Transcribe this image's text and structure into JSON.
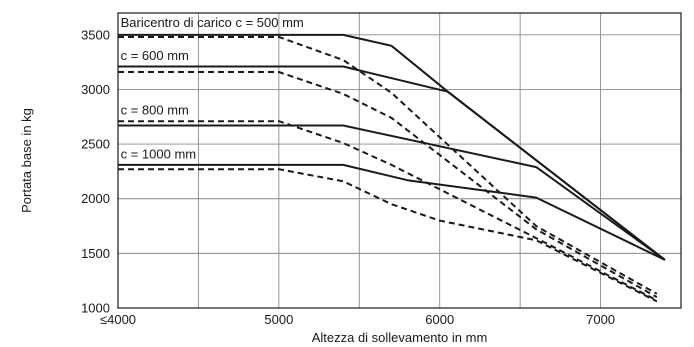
{
  "chart_data": {
    "type": "line",
    "title": "",
    "xlabel": "Altezza di sollevamento in mm",
    "ylabel": "Portata base in kg",
    "xlim": [
      4000,
      7500
    ],
    "ylim": [
      1000,
      3700
    ],
    "x_ticks": [
      {
        "value": 4000,
        "label": "≤4000"
      },
      {
        "value": 5000,
        "label": "5000"
      },
      {
        "value": 6000,
        "label": "6000"
      },
      {
        "value": 7000,
        "label": "7000"
      }
    ],
    "x_grid": [
      4000,
      4500,
      5000,
      5500,
      6000,
      6500,
      7000
    ],
    "y_ticks": [
      1000,
      1500,
      2000,
      2500,
      3000,
      3500
    ],
    "grid": true,
    "annotations": [
      {
        "text": "Baricentro di carico c = 500 mm",
        "x": 4010,
        "y": 3570
      },
      {
        "text": "c = 600 mm",
        "x": 4010,
        "y": 3270
      },
      {
        "text": "c = 800 mm",
        "x": 4010,
        "y": 2770
      },
      {
        "text": "c = 1000 mm",
        "x": 4010,
        "y": 2370
      }
    ],
    "series": [
      {
        "style": "solid",
        "color": "#1a1a1a",
        "points": [
          [
            4000,
            3500
          ],
          [
            5400,
            3500
          ],
          [
            5700,
            3400
          ],
          [
            6050,
            2980
          ],
          [
            7400,
            1440
          ]
        ]
      },
      {
        "style": "solid",
        "color": "#1a1a1a",
        "points": [
          [
            4000,
            3210
          ],
          [
            5400,
            3210
          ],
          [
            6050,
            2980
          ],
          [
            7400,
            1440
          ]
        ]
      },
      {
        "style": "solid",
        "color": "#1a1a1a",
        "points": [
          [
            4000,
            2670
          ],
          [
            5400,
            2670
          ],
          [
            6600,
            2290
          ],
          [
            7400,
            1440
          ]
        ]
      },
      {
        "style": "solid",
        "color": "#1a1a1a",
        "points": [
          [
            4000,
            2310
          ],
          [
            5400,
            2310
          ],
          [
            5800,
            2170
          ],
          [
            6600,
            2010
          ],
          [
            7400,
            1440
          ]
        ]
      },
      {
        "style": "dashed",
        "color": "#1a1a1a",
        "points": [
          [
            4000,
            3480
          ],
          [
            5000,
            3480
          ],
          [
            5400,
            3270
          ],
          [
            5700,
            2970
          ],
          [
            6600,
            1750
          ],
          [
            7350,
            1130
          ]
        ]
      },
      {
        "style": "dashed",
        "color": "#1a1a1a",
        "points": [
          [
            4000,
            3160
          ],
          [
            5000,
            3160
          ],
          [
            5400,
            2960
          ],
          [
            5700,
            2740
          ],
          [
            6600,
            1720
          ],
          [
            7350,
            1100
          ]
        ]
      },
      {
        "style": "dashed",
        "color": "#1a1a1a",
        "points": [
          [
            4000,
            2710
          ],
          [
            5000,
            2710
          ],
          [
            5400,
            2510
          ],
          [
            5700,
            2310
          ],
          [
            6600,
            1640
          ],
          [
            7350,
            1070
          ]
        ]
      },
      {
        "style": "dashed",
        "color": "#1a1a1a",
        "points": [
          [
            4000,
            2270
          ],
          [
            5000,
            2270
          ],
          [
            5400,
            2160
          ],
          [
            5700,
            1950
          ],
          [
            6000,
            1800
          ],
          [
            6600,
            1620
          ],
          [
            7350,
            1060
          ]
        ]
      }
    ]
  }
}
